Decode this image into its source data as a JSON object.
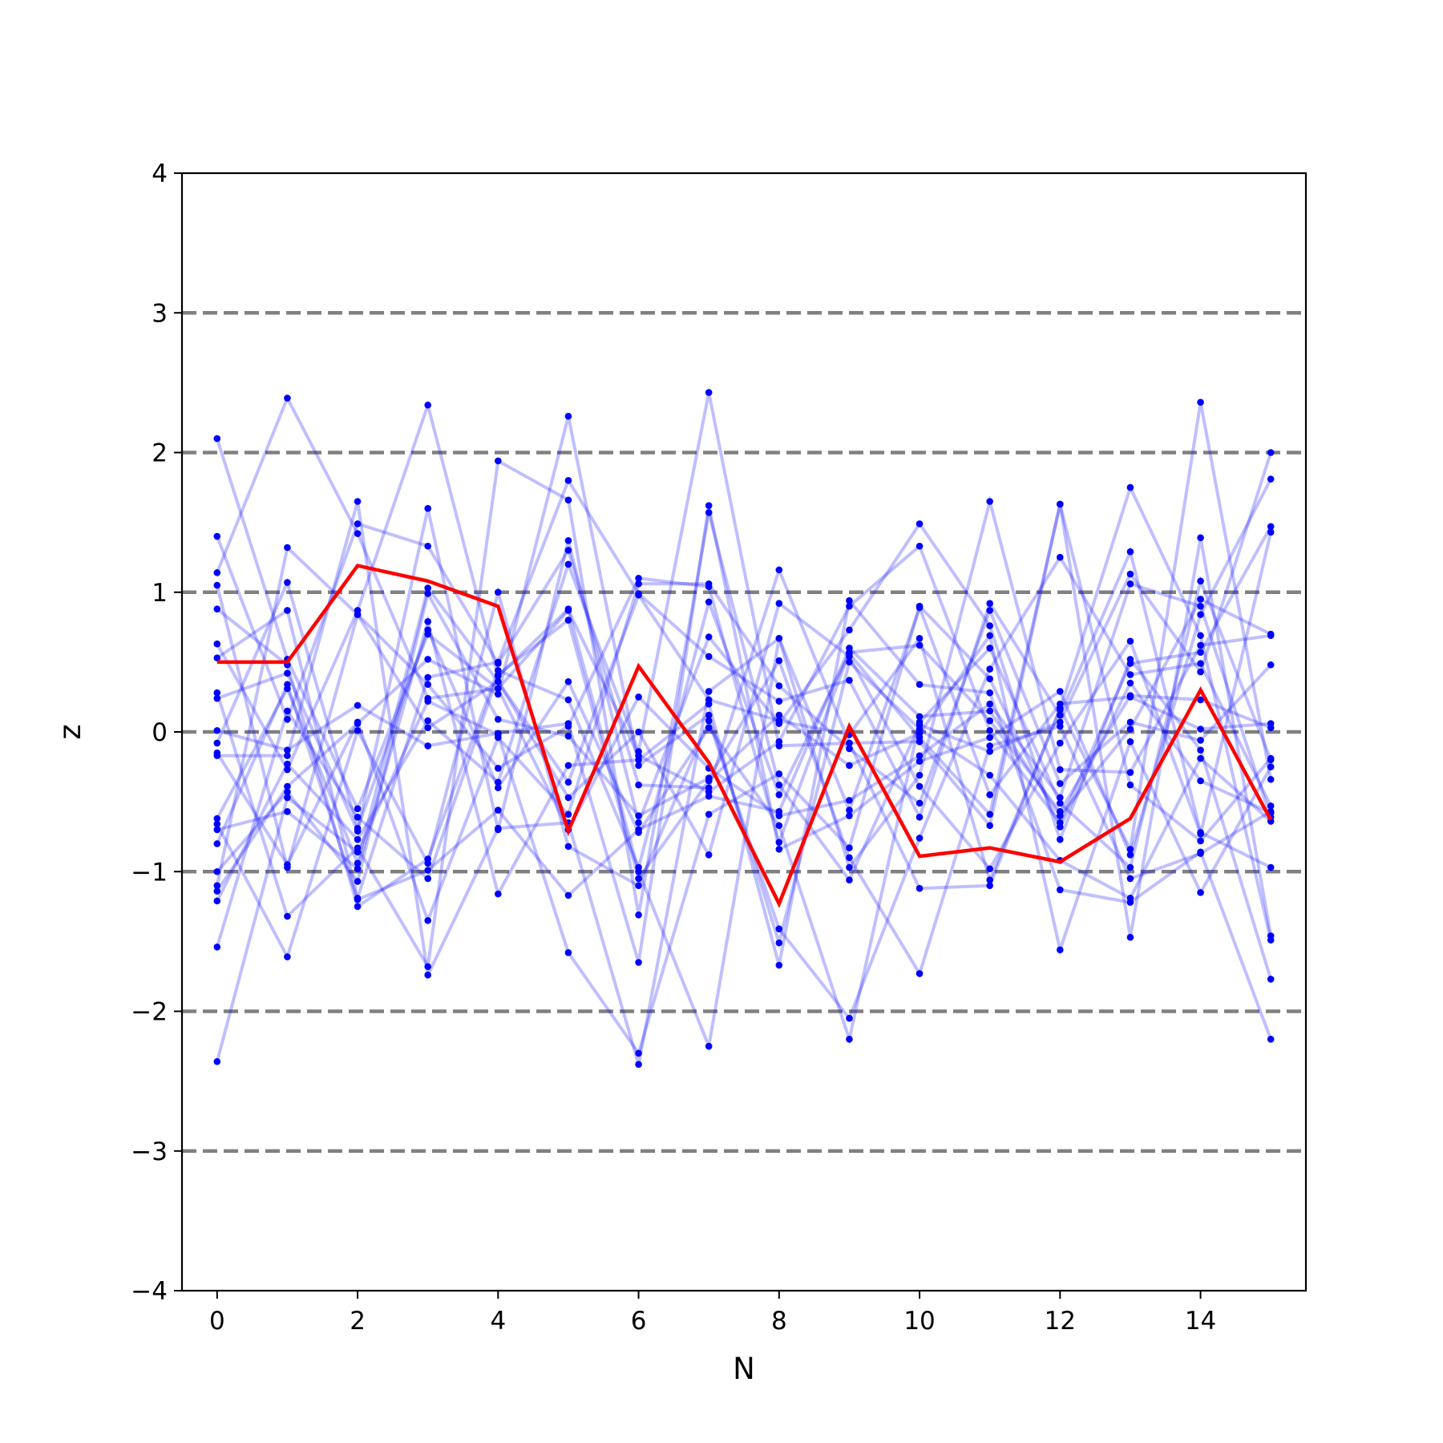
{
  "chart_data": {
    "type": "line",
    "xlabel": "N",
    "ylabel": "z",
    "xlim": [
      -0.5,
      15.5
    ],
    "ylim": [
      -4,
      4
    ],
    "x_ticks": [
      0,
      2,
      4,
      6,
      8,
      10,
      12,
      14
    ],
    "y_ticks": [
      -4,
      -3,
      -2,
      -1,
      0,
      1,
      2,
      3,
      4
    ],
    "reference_lines": [
      -3,
      -2,
      -1,
      0,
      1,
      2,
      3
    ],
    "grid": false,
    "legend": "none",
    "colors": {
      "samples": "#0000ff",
      "highlight": "#ff0000",
      "reference": "#808080",
      "axes": "#000000"
    },
    "x": [
      0,
      1,
      2,
      3,
      4,
      5,
      6,
      7,
      8,
      9,
      10,
      11,
      12,
      13,
      14,
      15
    ],
    "highlight_series": {
      "values": [
        0.5,
        0.5,
        1.19,
        1.08,
        0.9,
        -0.71,
        0.47,
        -0.22,
        -1.23,
        0.04,
        -0.89,
        -0.83,
        -0.93,
        -0.62,
        0.3,
        -0.63
      ]
    },
    "series": [
      {
        "values": [
          2.1,
          0.52,
          -0.55,
          0.7,
          0.31,
          -0.7,
          0.25,
          -0.26,
          -0.6,
          -0.49,
          -0.17,
          0.2,
          -0.47,
          1.06,
          0.9,
          -0.61
        ]
      },
      {
        "values": [
          1.4,
          0.09,
          1.49,
          1.33,
          0.49,
          1.3,
          -0.38,
          -0.4,
          1.16,
          -0.08,
          -0.07,
          -0.67,
          1.63,
          -0.38,
          -0.78,
          -0.19
        ]
      },
      {
        "values": [
          1.14,
          2.39,
          1.42,
          0.24,
          0.31,
          0.87,
          -0.17,
          -0.43,
          -0.07,
          0.9,
          1.33,
          0.01,
          -0.65,
          0.49,
          0.57,
          1.47
        ]
      },
      {
        "values": [
          1.05,
          -0.97,
          0.84,
          0.34,
          -0.26,
          0.04,
          1.1,
          1.04,
          -0.79,
          0.57,
          0.62,
          0.08,
          -0.57,
          0.26,
          0.23,
          0.03
        ]
      },
      {
        "values": [
          0.88,
          0.48,
          -1.25,
          -0.91,
          0.44,
          0.23,
          -0.97,
          0.93,
          -0.45,
          0.56,
          -0.04,
          -0.59,
          1.63,
          -1.47,
          1.39,
          -1.46
        ]
      },
      {
        "values": [
          0.63,
          -0.27,
          0.87,
          2.34,
          0.4,
          0.88,
          -1.0,
          -2.25,
          0.67,
          -0.97,
          -0.31,
          1.65,
          -0.27,
          -0.29,
          0.62,
          0.69
        ]
      },
      {
        "values": [
          0.53,
          0.87,
          -1.19,
          0.39,
          0.5,
          1.8,
          0.99,
          0.54,
          0.22,
          0.37,
          -0.61,
          0.92,
          0.12,
          1.29,
          -0.72,
          -0.97
        ]
      },
      {
        "values": [
          0.28,
          -1.32,
          -0.83,
          -1.68,
          1.94,
          1.66,
          -1.31,
          1.57,
          -0.38,
          -1.06,
          0.05,
          -0.14,
          0.07,
          1.13,
          0.43,
          2.0
        ]
      },
      {
        "values": [
          0.24,
          0.42,
          -0.71,
          1.6,
          -0.7,
          1.37,
          -0.65,
          0.68,
          0.06,
          0.73,
          1.49,
          0.76,
          -0.77,
          0.52,
          -0.13,
          -1.77
        ]
      },
      {
        "values": [
          0.01,
          -0.13,
          0.19,
          -0.1,
          -0.01,
          0.06,
          -1.65,
          1.62,
          -0.84,
          -0.6,
          -0.21,
          -0.04,
          0.29,
          -0.88,
          0.84,
          1.81
        ]
      },
      {
        "values": [
          -0.08,
          1.07,
          -0.69,
          0.73,
          -0.4,
          0.36,
          -0.72,
          0.03,
          -0.67,
          -2.2,
          0.07,
          0.6,
          -0.51,
          -0.97,
          1.08,
          -0.2
        ]
      },
      {
        "values": [
          -0.15,
          -0.95,
          0.07,
          -1.35,
          -0.04,
          -0.59,
          1.06,
          1.06,
          0.33,
          -0.12,
          -0.51,
          0.87,
          -0.37,
          0.07,
          -0.06,
          0.48
        ]
      },
      {
        "values": [
          -0.17,
          -0.17,
          1.65,
          -1.74,
          -0.69,
          -0.65,
          -2.38,
          0.29,
          0.67,
          -0.56,
          0.89,
          -0.45,
          0.2,
          0.25,
          0.02,
          0.06
        ]
      },
      {
        "values": [
          -0.62,
          0.31,
          -0.94,
          1.03,
          0.36,
          -0.47,
          0.0,
          -0.88,
          0.92,
          0.54,
          -0.39,
          -0.98,
          -0.08,
          0.65,
          -0.73,
          1.43
        ]
      },
      {
        "values": [
          -0.66,
          -1.61,
          0.01,
          -0.94,
          1.0,
          -0.82,
          -1.1,
          0.08,
          -1.41,
          -2.05,
          -0.76,
          0.45,
          1.25,
          0.41,
          0.49,
          -0.53
        ]
      },
      {
        "values": [
          -0.7,
          -0.57,
          -0.98,
          0.79,
          -1.16,
          -0.24,
          -0.2,
          0.2,
          -1.67,
          0.94,
          0.34,
          0.28,
          -1.13,
          -1.22,
          -0.86,
          -2.2
        ]
      },
      {
        "values": [
          -0.8,
          0.34,
          -1.2,
          -0.99,
          -0.56,
          -1.17,
          -0.7,
          -0.46,
          -0.57,
          0.6,
          0.11,
          0.15,
          -0.6,
          0.02,
          0.95,
          0.7
        ]
      },
      {
        "values": [
          -1.0,
          -0.43,
          -1.07,
          0.99,
          0.09,
          -0.03,
          -0.6,
          -0.33,
          0.51,
          -0.9,
          -1.73,
          -0.1,
          0.04,
          -1.05,
          -0.87,
          -0.57
        ]
      },
      {
        "values": [
          -1.1,
          1.32,
          0.84,
          0.03,
          0.36,
          -0.36,
          0.98,
          0.23,
          0.08,
          -0.02,
          0.67,
          -1.06,
          0.16,
          1.75,
          0.69,
          -1.49
        ]
      },
      {
        "values": [
          -1.14,
          -0.39,
          0.06,
          0.52,
          0.27,
          2.26,
          -0.24,
          0.12,
          -1.51,
          0.5,
          0.02,
          -0.31,
          -0.92,
          -1.19,
          -0.19,
          -0.64
        ]
      },
      {
        "values": [
          -1.21,
          -0.23,
          -0.77,
          0.08,
          -0.36,
          1.2,
          -0.14,
          2.43,
          -0.1,
          -0.08,
          -1.12,
          -1.1,
          0.17,
          -0.84,
          2.36,
          -0.34
        ]
      },
      {
        "values": [
          -1.54,
          0.15,
          -0.61,
          -1.05,
          0.41,
          0.8,
          -1.05,
          -0.35,
          0.12,
          -0.24,
          -0.01,
          0.69,
          -1.56,
          -0.07,
          -1.15,
          -0.25
        ]
      },
      {
        "values": [
          -2.36,
          -0.47,
          -0.86,
          0.22,
          -0.02,
          -1.58,
          -2.3,
          -0.59,
          -0.3,
          -0.83,
          0.9,
          0.38,
          -0.68,
          0.35,
          -0.35,
          -0.58
        ]
      }
    ]
  }
}
